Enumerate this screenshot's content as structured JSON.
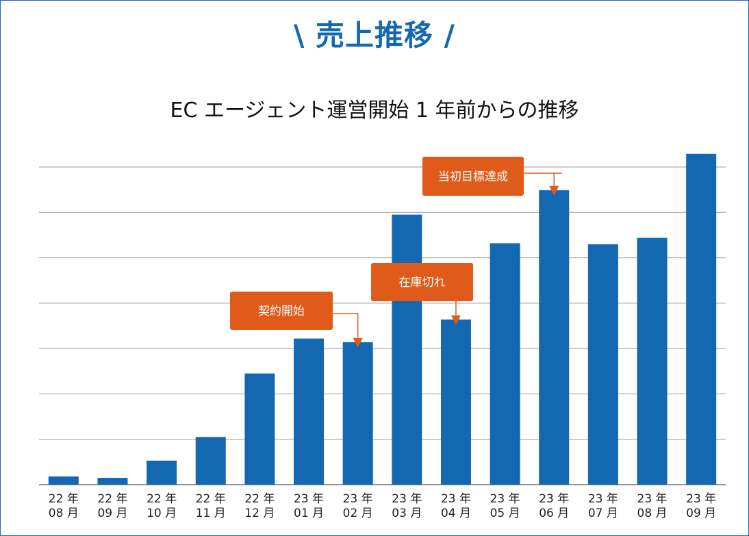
{
  "heading": "\\ 売上推移 /",
  "chart_data": {
    "type": "bar",
    "title": "EC エージェント運営開始 1 年前からの推移",
    "categories": [
      [
        "22 年",
        "08 月"
      ],
      [
        "22 年",
        "09 月"
      ],
      [
        "22 年",
        "10 月"
      ],
      [
        "22 年",
        "11 月"
      ],
      [
        "22 年",
        "12 月"
      ],
      [
        "23 年",
        "01 月"
      ],
      [
        "23 年",
        "02 月"
      ],
      [
        "23 年",
        "03 月"
      ],
      [
        "23 年",
        "04 月"
      ],
      [
        "23 年",
        "05 月"
      ],
      [
        "23 年",
        "06 月"
      ],
      [
        "23 年",
        "07 月"
      ],
      [
        "23 年",
        "08 月"
      ],
      [
        "23 年",
        "09 月"
      ]
    ],
    "values": [
      0.18,
      0.15,
      0.53,
      1.05,
      2.45,
      3.22,
      3.14,
      5.95,
      3.64,
      5.32,
      6.49,
      5.3,
      5.44,
      7.29
    ],
    "ylim": [
      0,
      7
    ],
    "grid": true,
    "bar_color": "#1468b1",
    "annotations": [
      {
        "text": "契約開始",
        "target_index": 6
      },
      {
        "text": "在庫切れ",
        "target_index": 8
      },
      {
        "text": "当初目標達成",
        "target_index": 10
      }
    ],
    "annotation_color": "#e05a1a"
  }
}
